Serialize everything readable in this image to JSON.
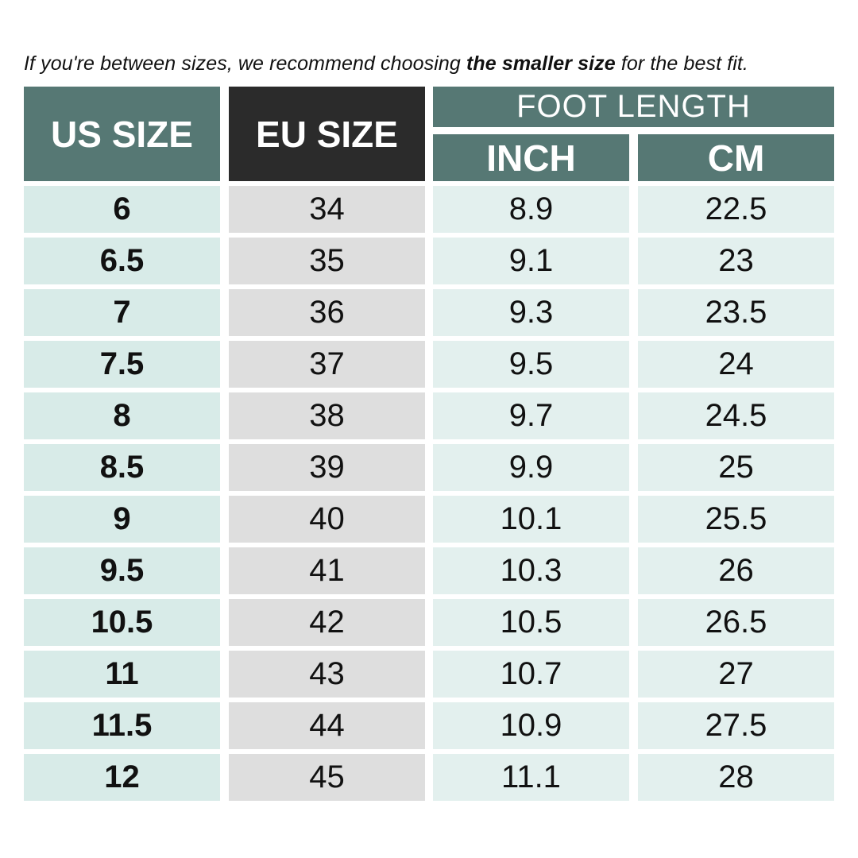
{
  "note": {
    "before": "If you're between sizes, we recommend choosing ",
    "emphasis": "the smaller size",
    "after": " for the best fit."
  },
  "headers": {
    "us_size": "US SIZE",
    "eu_size": "EU SIZE",
    "foot_length": "FOOT LENGTH",
    "inch": "INCH",
    "cm": "CM"
  },
  "colors": {
    "header_teal": "#567874",
    "header_dark": "#2b2b2b",
    "us_cell": "#d8ebe8",
    "eu_cell": "#dedede",
    "length_cell": "#e3f0ee"
  },
  "rows": [
    {
      "us": "6",
      "eu": "34",
      "inch": "8.9",
      "cm": "22.5"
    },
    {
      "us": "6.5",
      "eu": "35",
      "inch": "9.1",
      "cm": "23"
    },
    {
      "us": "7",
      "eu": "36",
      "inch": "9.3",
      "cm": "23.5"
    },
    {
      "us": "7.5",
      "eu": "37",
      "inch": "9.5",
      "cm": "24"
    },
    {
      "us": "8",
      "eu": "38",
      "inch": "9.7",
      "cm": "24.5"
    },
    {
      "us": "8.5",
      "eu": "39",
      "inch": "9.9",
      "cm": "25"
    },
    {
      "us": "9",
      "eu": "40",
      "inch": "10.1",
      "cm": "25.5"
    },
    {
      "us": "9.5",
      "eu": "41",
      "inch": "10.3",
      "cm": "26"
    },
    {
      "us": "10.5",
      "eu": "42",
      "inch": "10.5",
      "cm": "26.5"
    },
    {
      "us": "11",
      "eu": "43",
      "inch": "10.7",
      "cm": "27"
    },
    {
      "us": "11.5",
      "eu": "44",
      "inch": "10.9",
      "cm": "27.5"
    },
    {
      "us": "12",
      "eu": "45",
      "inch": "11.1",
      "cm": "28"
    }
  ]
}
